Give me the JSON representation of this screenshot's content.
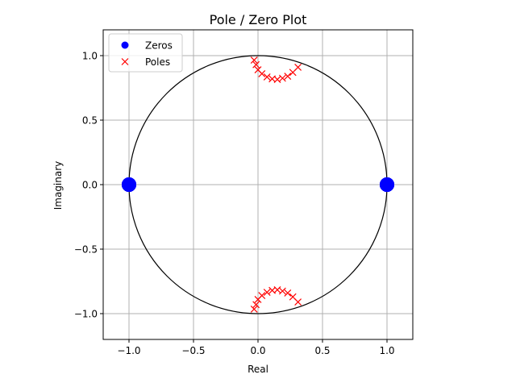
{
  "chart_data": {
    "type": "scatter",
    "title": "Pole / Zero Plot",
    "xlabel": "Real",
    "ylabel": "Imaginary",
    "xlim": [
      -1.2,
      1.2
    ],
    "ylim": [
      -1.2,
      1.2
    ],
    "xticks": [
      -1.0,
      -0.5,
      0.0,
      0.5,
      1.0
    ],
    "yticks": [
      -1.0,
      -0.5,
      0.0,
      0.5,
      1.0
    ],
    "xtick_labels": [
      "−1.0",
      "−0.5",
      "0.0",
      "0.5",
      "1.0"
    ],
    "ytick_labels": [
      "−1.0",
      "−0.5",
      "0.0",
      "0.5",
      "1.0"
    ],
    "grid": true,
    "unit_circle": true,
    "legend": {
      "placement": "top-left",
      "entries": [
        "Zeros",
        "Poles"
      ]
    },
    "colors": {
      "zeros": "#0000ff",
      "poles": "#ff0000",
      "grid": "#b0b0b0",
      "circle": "#000000"
    },
    "series": [
      {
        "name": "Zeros",
        "marker": "circle",
        "points": [
          [
            -1.0,
            0.0
          ],
          [
            -1.0,
            0.0
          ],
          [
            -1.0,
            0.0
          ],
          [
            -1.0,
            0.0
          ],
          [
            -1.0,
            0.0
          ],
          [
            1.0,
            0.0
          ],
          [
            1.0,
            0.0
          ],
          [
            1.0,
            0.0
          ],
          [
            1.0,
            0.0
          ],
          [
            1.0,
            0.0
          ]
        ]
      },
      {
        "name": "Poles",
        "marker": "x",
        "points": [
          [
            -0.03,
            0.965
          ],
          [
            -0.015,
            0.93
          ],
          [
            0.0,
            0.89
          ],
          [
            0.03,
            0.86
          ],
          [
            0.07,
            0.835
          ],
          [
            0.11,
            0.82
          ],
          [
            0.15,
            0.815
          ],
          [
            0.19,
            0.825
          ],
          [
            0.23,
            0.84
          ],
          [
            0.27,
            0.87
          ],
          [
            0.31,
            0.91
          ],
          [
            -0.03,
            -0.965
          ],
          [
            -0.015,
            -0.93
          ],
          [
            0.0,
            -0.89
          ],
          [
            0.03,
            -0.86
          ],
          [
            0.07,
            -0.835
          ],
          [
            0.11,
            -0.82
          ],
          [
            0.15,
            -0.815
          ],
          [
            0.19,
            -0.825
          ],
          [
            0.23,
            -0.84
          ],
          [
            0.27,
            -0.87
          ],
          [
            0.31,
            -0.91
          ]
        ]
      }
    ]
  }
}
